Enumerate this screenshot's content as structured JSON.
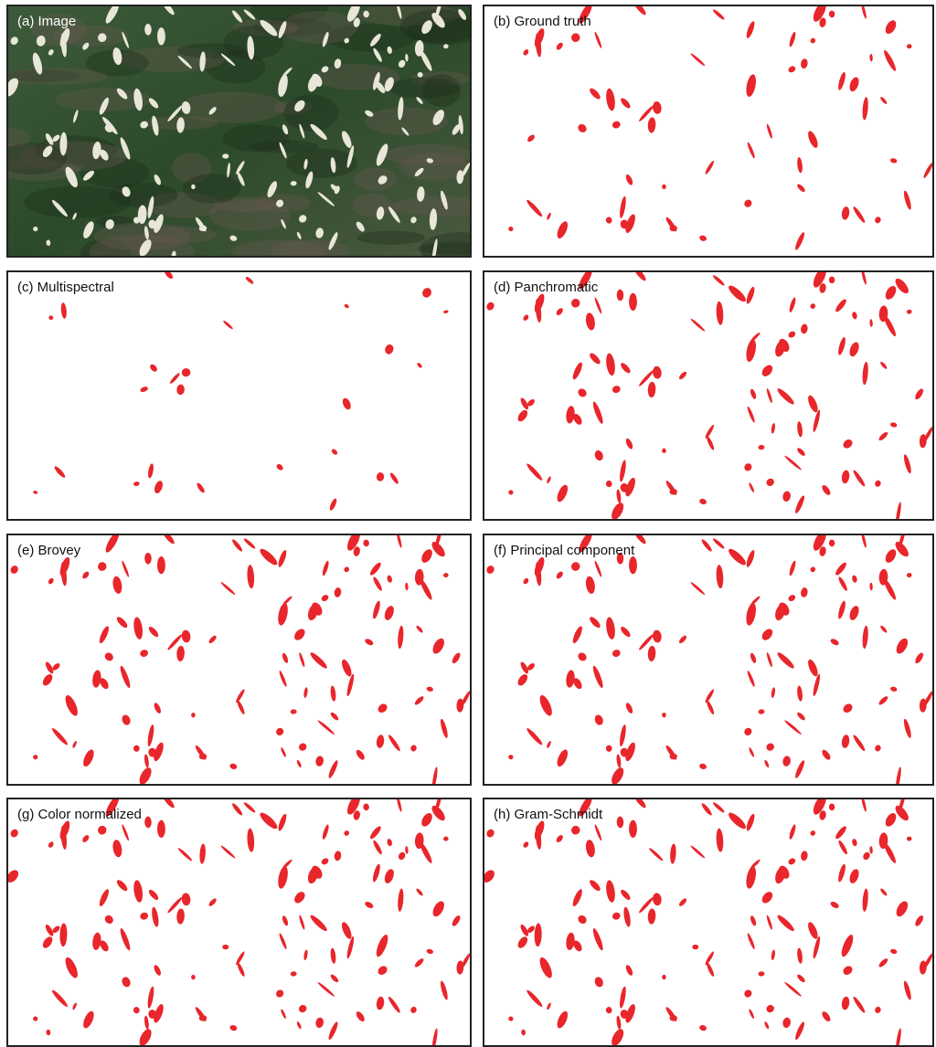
{
  "panels": [
    {
      "label": "(a) Image"
    },
    {
      "label": "(b) Ground truth"
    },
    {
      "label": "(c) Multispectral"
    },
    {
      "label": "(d) Panchromatic"
    },
    {
      "label": "(e) Brovey"
    },
    {
      "label": "(f) Principal component"
    },
    {
      "label": "(g) Color normalized"
    },
    {
      "label": "(h) Gram-Schmidt"
    }
  ]
}
